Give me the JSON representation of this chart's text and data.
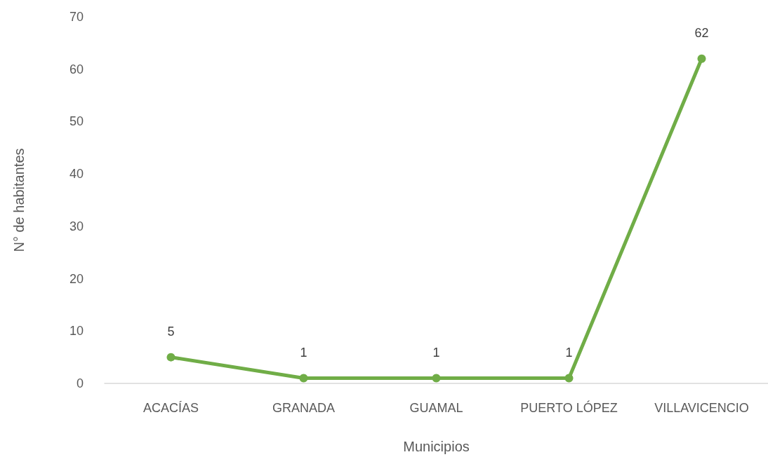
{
  "chart_data": {
    "type": "line",
    "xlabel": "Municipios",
    "ylabel": "N° de habitantes",
    "categories": [
      "ACACÍAS",
      "GRANADA",
      "GUAMAL",
      "PUERTO LÓPEZ",
      "VILLAVICENCIO"
    ],
    "values": [
      5,
      1,
      1,
      1,
      62
    ],
    "color": "#70ad47",
    "ylim": [
      0,
      70
    ],
    "yticks": [
      0,
      10,
      20,
      30,
      40,
      50,
      60,
      70
    ],
    "grid": false,
    "data_labels": true,
    "marker": "circle",
    "line_style": "solid"
  }
}
